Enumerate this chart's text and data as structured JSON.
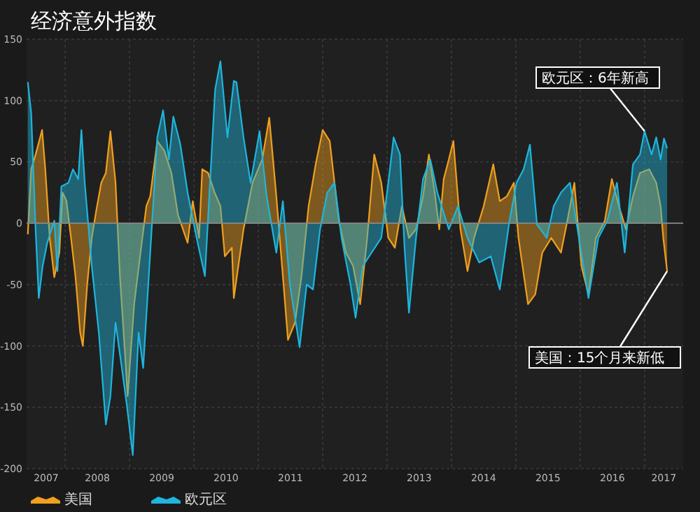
{
  "chart_data": {
    "type": "area",
    "title": "经济意外指数",
    "xlim": [
      "2007-05-27",
      "2017-08-08"
    ],
    "ylim": [
      -200,
      150
    ],
    "xticks": [
      {
        "value": "2007-09-15",
        "label": "2007"
      },
      {
        "value": "2008-01-01",
        "label": null
      },
      {
        "value": "2008-07-02",
        "label": "2008"
      },
      {
        "value": "2009-01-01",
        "label": null
      },
      {
        "value": "2009-07-02",
        "label": "2009"
      },
      {
        "value": "2010-01-01",
        "label": null
      },
      {
        "value": "2010-07-02",
        "label": "2010"
      },
      {
        "value": "2011-01-01",
        "label": null
      },
      {
        "value": "2011-07-02",
        "label": "2011"
      },
      {
        "value": "2012-01-01",
        "label": null
      },
      {
        "value": "2012-07-02",
        "label": "2012"
      },
      {
        "value": "2013-01-01",
        "label": null
      },
      {
        "value": "2013-07-02",
        "label": "2013"
      },
      {
        "value": "2014-01-01",
        "label": null
      },
      {
        "value": "2014-07-02",
        "label": "2014"
      },
      {
        "value": "2015-01-01",
        "label": null
      },
      {
        "value": "2015-07-02",
        "label": "2015"
      },
      {
        "value": "2016-01-01",
        "label": null
      },
      {
        "value": "2016-07-02",
        "label": "2016"
      },
      {
        "value": "2017-01-01",
        "label": null
      },
      {
        "value": "2017-04-20",
        "label": "2017"
      }
    ],
    "yticks": [
      150,
      100,
      50,
      0,
      -50,
      -100,
      -150,
      -200
    ],
    "grid": true,
    "legend": "bottom left",
    "annotations": [
      {
        "text": "欧元区：6年新高",
        "x": "2017-01-01",
        "y": 75
      },
      {
        "text": "美国：15个月来新低",
        "x": "2017-05-09",
        "y": -39
      }
    ],
    "series": [
      {
        "name": "美国",
        "color": "#f0a020",
        "x": [
          "2007-06-03",
          "2007-06-22",
          "2007-07-17",
          "2007-08-01",
          "2007-08-23",
          "2007-09-10",
          "2007-10-05",
          "2007-10-31",
          "2007-11-29",
          "2007-12-17",
          "2008-01-08",
          "2008-02-03",
          "2008-02-28",
          "2008-03-26",
          "2008-04-10",
          "2008-05-05",
          "2008-05-31",
          "2008-06-25",
          "2008-07-24",
          "2008-08-19",
          "2008-09-14",
          "2008-10-13",
          "2008-11-07",
          "2008-12-03",
          "2008-12-21",
          "2009-01-27",
          "2009-03-04",
          "2009-04-06",
          "2009-04-28",
          "2009-06-07",
          "2009-07-17",
          "2009-08-26",
          "2009-10-02",
          "2009-11-26",
          "2009-12-25",
          "2010-01-30",
          "2010-02-17",
          "2010-03-22",
          "2010-04-28",
          "2010-05-31",
          "2010-06-25",
          "2010-08-04",
          "2010-08-15",
          "2010-10-09",
          "2010-11-29",
          "2011-01-23",
          "2011-03-04",
          "2011-04-13",
          "2011-05-20",
          "2011-06-18",
          "2011-07-28",
          "2011-09-03",
          "2011-10-13",
          "2011-11-22",
          "2012-01-01",
          "2012-02-10",
          "2012-03-08",
          "2012-04-02",
          "2012-05-12",
          "2012-06-22",
          "2012-08-01",
          "2012-09-10",
          "2012-10-20",
          "2012-11-29",
          "2013-01-08",
          "2013-02-14",
          "2013-03-26",
          "2013-05-05",
          "2013-06-14",
          "2013-07-24",
          "2013-08-26",
          "2013-09-28",
          "2013-10-24",
          "2013-11-18",
          "2013-12-17",
          "2014-01-12",
          "2014-02-21",
          "2014-04-02",
          "2014-05-09",
          "2014-07-03",
          "2014-08-26",
          "2014-10-02",
          "2014-11-11",
          "2014-12-21",
          "2015-01-16",
          "2015-03-11",
          "2015-04-21",
          "2015-05-31",
          "2015-07-21",
          "2015-09-14",
          "2015-10-20",
          "2015-11-29",
          "2016-01-08",
          "2016-02-17",
          "2016-03-30",
          "2016-05-20",
          "2016-06-29",
          "2016-08-08",
          "2016-09-17",
          "2016-10-27",
          "2016-12-06",
          "2017-01-27",
          "2017-03-08",
          "2017-04-02",
          "2017-04-17",
          "2017-05-09"
        ],
        "values": [
          -9,
          44,
          56,
          64,
          76,
          44,
          -12,
          -44,
          -24,
          25,
          18,
          -12,
          -43,
          -89,
          -100,
          -50,
          -12,
          10,
          33,
          41,
          75,
          33,
          -43,
          -100,
          -141,
          -66,
          -24,
          14,
          22,
          67,
          59,
          41,
          7,
          -16,
          18,
          -12,
          44,
          41,
          25,
          14,
          -27,
          -20,
          -61,
          -5,
          33,
          52,
          86,
          22,
          -43,
          -95,
          -81,
          -43,
          14,
          48,
          76,
          67,
          33,
          2,
          -24,
          -35,
          -66,
          -12,
          56,
          33,
          -12,
          -20,
          14,
          -12,
          -5,
          22,
          56,
          25,
          -5,
          36,
          52,
          67,
          -5,
          -39,
          -12,
          14,
          48,
          18,
          22,
          33,
          -12,
          -66,
          -58,
          -24,
          -12,
          -24,
          2,
          33,
          -35,
          -58,
          -12,
          2,
          36,
          14,
          -5,
          22,
          41,
          44,
          33,
          14,
          -12,
          -39
        ]
      },
      {
        "name": "欧元区",
        "color": "#1fb5dc",
        "x": [
          "2007-06-03",
          "2007-06-22",
          "2007-07-17",
          "2007-08-04",
          "2007-08-26",
          "2007-09-21",
          "2007-10-31",
          "2007-11-18",
          "2007-12-10",
          "2008-01-19",
          "2008-02-14",
          "2008-03-15",
          "2008-04-02",
          "2008-04-21",
          "2008-05-31",
          "2008-07-10",
          "2008-08-19",
          "2008-09-14",
          "2008-10-13",
          "2008-11-18",
          "2008-12-17",
          "2009-01-19",
          "2009-02-21",
          "2009-03-19",
          "2009-04-28",
          "2009-06-07",
          "2009-07-10",
          "2009-08-12",
          "2009-09-06",
          "2009-10-16",
          "2009-11-26",
          "2010-01-16",
          "2010-03-04",
          "2010-05-01",
          "2010-05-31",
          "2010-07-10",
          "2010-08-15",
          "2010-08-30",
          "2010-10-09",
          "2010-11-18",
          "2011-01-08",
          "2011-02-17",
          "2011-04-13",
          "2011-05-20",
          "2011-06-29",
          "2011-08-23",
          "2011-10-02",
          "2011-11-07",
          "2011-12-17",
          "2012-01-27",
          "2012-03-08",
          "2012-04-17",
          "2012-06-07",
          "2012-07-06",
          "2012-08-15",
          "2012-10-05",
          "2012-11-29",
          "2013-01-08",
          "2013-02-07",
          "2013-03-15",
          "2013-04-10",
          "2013-05-05",
          "2013-06-14",
          "2013-07-24",
          "2013-09-03",
          "2013-10-13",
          "2013-12-17",
          "2014-02-07",
          "2014-04-02",
          "2014-06-07",
          "2014-08-12",
          "2014-10-02",
          "2014-11-26",
          "2015-01-05",
          "2015-02-14",
          "2015-03-22",
          "2015-05-01",
          "2015-06-25",
          "2015-08-04",
          "2015-09-14",
          "2015-11-04",
          "2015-12-25",
          "2016-02-17",
          "2016-04-13",
          "2016-06-03",
          "2016-07-28",
          "2016-09-10",
          "2016-10-27",
          "2016-12-06",
          "2017-01-01",
          "2017-02-10",
          "2017-03-08",
          "2017-04-02",
          "2017-04-21",
          "2017-05-09"
        ],
        "values": [
          115,
          90,
          -5,
          -61,
          -35,
          -16,
          2,
          -39,
          30,
          33,
          44,
          36,
          76,
          33,
          -35,
          -89,
          -164,
          -141,
          -81,
          -118,
          -149,
          -189,
          -89,
          -118,
          -24,
          70,
          92,
          52,
          87,
          64,
          25,
          -12,
          -43,
          109,
          132,
          70,
          116,
          115,
          70,
          33,
          75,
          22,
          -24,
          18,
          -50,
          -101,
          -50,
          -54,
          -5,
          25,
          33,
          -12,
          -50,
          -77,
          -35,
          -24,
          -12,
          33,
          70,
          56,
          -20,
          -73,
          -12,
          36,
          52,
          25,
          -5,
          14,
          -12,
          -32,
          -27,
          -54,
          2,
          33,
          44,
          64,
          -1,
          -12,
          14,
          25,
          33,
          -12,
          -61,
          -12,
          2,
          33,
          -24,
          48,
          56,
          75,
          56,
          70,
          52,
          69,
          61
        ]
      }
    ]
  }
}
